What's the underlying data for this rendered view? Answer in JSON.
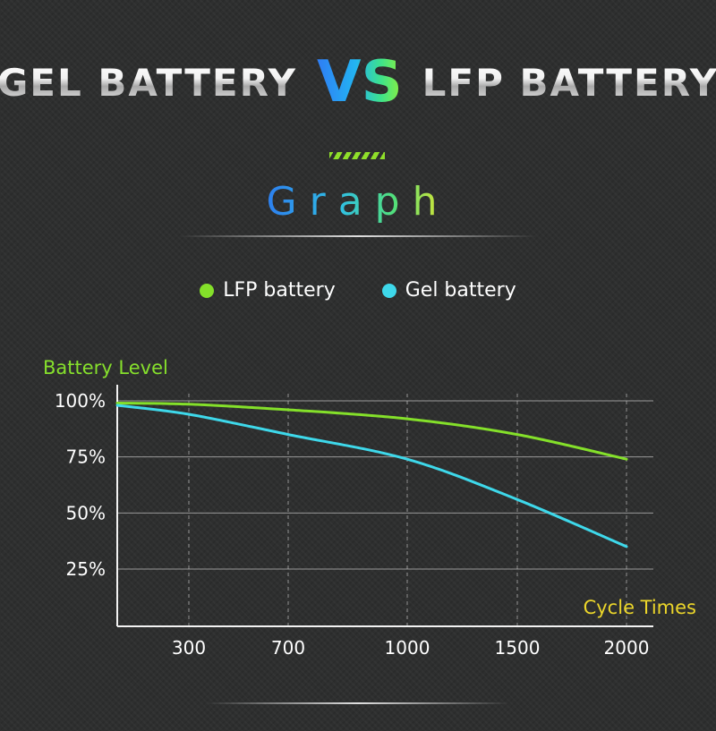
{
  "header": {
    "left": "GEL BATTERY",
    "vs": "VS",
    "right": "LFP BATTERY",
    "subtitle": "Graph"
  },
  "colors": {
    "lfp": "#84e02a",
    "gel": "#3ed8ea",
    "ylabel": "#86e02c",
    "xlabel": "#ecd62a"
  },
  "chart_data": {
    "type": "line",
    "xlabel": "Cycle Times",
    "ylabel": "Battery Level",
    "x_ticks": [
      "300",
      "700",
      "1000",
      "1500",
      "2000"
    ],
    "y_ticks": [
      "100%",
      "75%",
      "50%",
      "25%"
    ],
    "y_tick_values": [
      100,
      75,
      50,
      25
    ],
    "grid": true,
    "legend": "top-center",
    "series": [
      {
        "name": "LFP battery",
        "x": [
          0,
          300,
          700,
          1000,
          1500,
          2000
        ],
        "y": [
          99,
          98.5,
          96,
          92,
          85,
          74
        ]
      },
      {
        "name": "Gel battery",
        "x": [
          0,
          300,
          700,
          1000,
          1500,
          2000
        ],
        "y": [
          98,
          94,
          85,
          74,
          56,
          35
        ]
      }
    ]
  }
}
